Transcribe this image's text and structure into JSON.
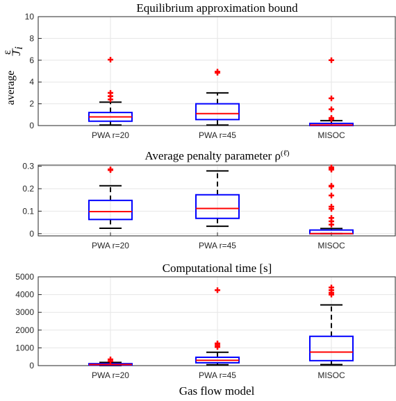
{
  "figure": {
    "xlabel": "Gas flow model"
  },
  "colors": {
    "box": "#0000ff",
    "median": "#ff0000",
    "whisker": "#000000",
    "outlier": "#ff0000",
    "grid": "#e6e6e6",
    "axes": "#262626"
  },
  "chart_data": [
    {
      "type": "box",
      "title": "Equilibrium approximation bound",
      "ylabel_prefix": "average",
      "ylabel_frac_num": "ε",
      "ylabel_frac_den": "J",
      "ylabel_frac_den_sub": "i",
      "categories": [
        "PWA r=20",
        "PWA r=45",
        "MISOC"
      ],
      "ylim": [
        0,
        10
      ],
      "yticks": [
        0,
        2,
        4,
        6,
        8,
        10
      ],
      "grid": true,
      "boxes": [
        {
          "q1": 0.4,
          "median": 0.8,
          "q3": 1.2,
          "whisker_low": 0.05,
          "whisker_high": 2.15,
          "outliers": [
            2.4,
            2.7,
            3.0,
            6.05
          ]
        },
        {
          "q1": 0.55,
          "median": 1.1,
          "q3": 2.0,
          "whisker_low": 0.05,
          "whisker_high": 3.0,
          "outliers": [
            4.85,
            4.95
          ]
        },
        {
          "q1": 0.0,
          "median": 0.05,
          "q3": 0.2,
          "whisker_low": 0.0,
          "whisker_high": 0.45,
          "outliers": [
            0.6,
            0.7,
            1.5,
            2.5,
            6.0
          ]
        }
      ]
    },
    {
      "type": "box",
      "title": "Average penalty parameter ρ",
      "title_sup": "(ℓ̄)",
      "categories": [
        "PWA r=20",
        "PWA r=45",
        "MISOC"
      ],
      "ylim": [
        -0.01,
        0.305
      ],
      "yticks": [
        0,
        0.1,
        0.2,
        0.3
      ],
      "grid": true,
      "boxes": [
        {
          "q1": 0.063,
          "median": 0.098,
          "q3": 0.148,
          "whisker_low": 0.024,
          "whisker_high": 0.213,
          "outliers": [
            0.283,
            0.286
          ]
        },
        {
          "q1": 0.068,
          "median": 0.112,
          "q3": 0.173,
          "whisker_low": 0.033,
          "whisker_high": 0.279,
          "outliers": []
        },
        {
          "q1": 0.0,
          "median": 0.0,
          "q3": 0.016,
          "whisker_low": 0.0,
          "whisker_high": 0.023,
          "outliers": [
            0.04,
            0.055,
            0.07,
            0.11,
            0.12,
            0.17,
            0.21,
            0.213,
            0.285,
            0.29,
            0.295
          ]
        }
      ]
    },
    {
      "type": "box",
      "title": "Computational time [s]",
      "categories": [
        "PWA r=20",
        "PWA r=45",
        "MISOC"
      ],
      "ylim": [
        0,
        5000
      ],
      "yticks": [
        0,
        1000,
        2000,
        3000,
        4000,
        5000
      ],
      "grid": true,
      "boxes": [
        {
          "q1": 30,
          "median": 60,
          "q3": 110,
          "whisker_low": 5,
          "whisker_high": 180,
          "outliers": [
            250,
            350
          ]
        },
        {
          "q1": 160,
          "median": 300,
          "q3": 470,
          "whisker_low": 50,
          "whisker_high": 750,
          "outliers": [
            1050,
            1150,
            1250,
            4250
          ]
        },
        {
          "q1": 280,
          "median": 760,
          "q3": 1650,
          "whisker_low": 60,
          "whisker_high": 3420,
          "outliers": [
            4000,
            4100,
            4250,
            4400
          ]
        }
      ]
    }
  ]
}
